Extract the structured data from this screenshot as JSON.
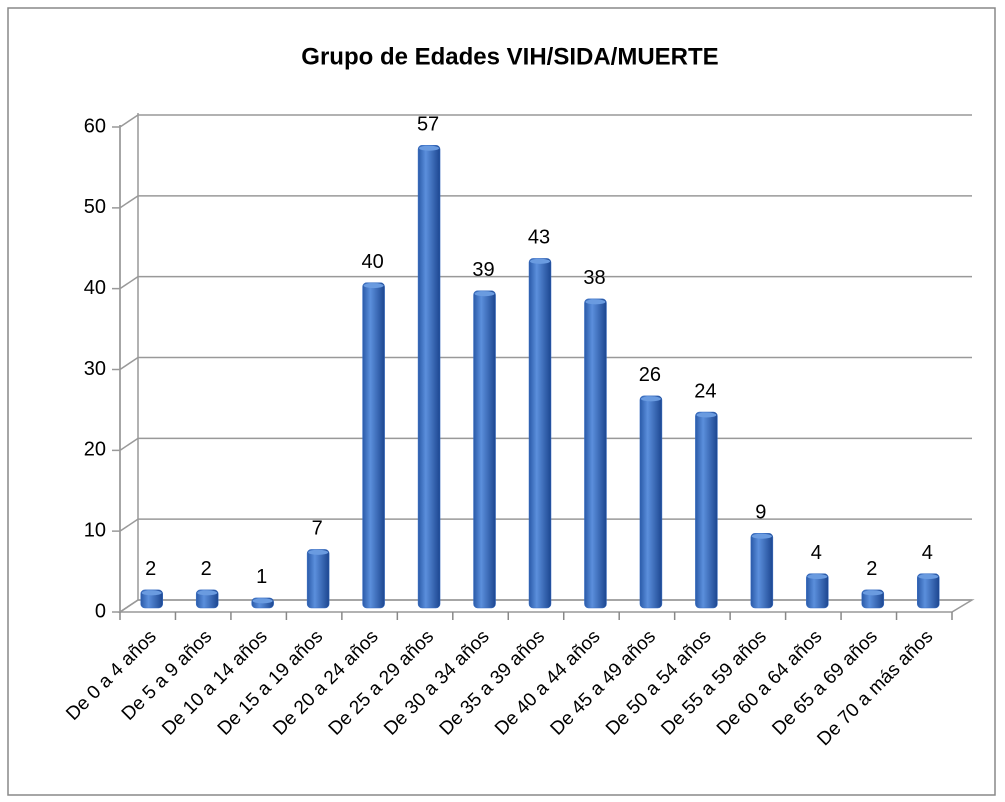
{
  "chart_data": {
    "type": "bar",
    "title": "Grupo de Edades VIH/SIDA/MUERTE",
    "categories": [
      "De 0 a 4 años",
      "De 5 a 9 años",
      "De 10 a 14 años",
      "De 15 a 19 años",
      "De 20 a 24 años",
      "De 25 a 29 años",
      "De 30 a 34 años",
      "De 35 a 39 años",
      "De 40 a 44 años",
      "De 45 a 49 años",
      "De 50 a 54 años",
      "De 55 a 59 años",
      "De 60 a 64 años",
      "De 65 a 69 años",
      "De 70 a más años"
    ],
    "values": [
      2,
      2,
      1,
      7,
      40,
      57,
      39,
      43,
      38,
      26,
      24,
      9,
      4,
      2,
      4
    ],
    "color": "#3a6fc4",
    "ylim": [
      0,
      60
    ],
    "yticks": [
      0,
      10,
      20,
      30,
      40,
      50,
      60
    ],
    "grid": true
  }
}
